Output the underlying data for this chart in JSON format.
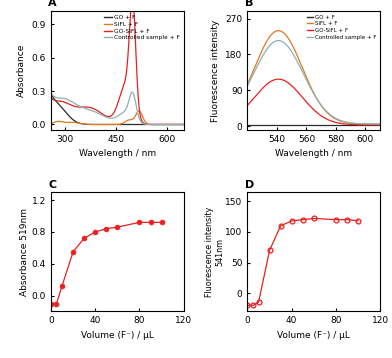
{
  "panel_A": {
    "title": "A",
    "xlabel": "Wavelength / nm",
    "ylabel": "Absorbance",
    "xlim": [
      260,
      650
    ],
    "ylim": [
      -0.05,
      1.02
    ],
    "yticks": [
      0.0,
      0.3,
      0.6,
      0.9
    ],
    "xticks": [
      300,
      450,
      600
    ],
    "legend": [
      "GO + F",
      "SiFL + F",
      "GO-SiFL + F",
      "Controlled sample + F"
    ],
    "colors": [
      "#2a2a2a",
      "#e07820",
      "#e82020",
      "#90b0b0"
    ]
  },
  "panel_B": {
    "title": "B",
    "xlabel": "Wavelength / nm",
    "ylabel": "Fluorescence intensity",
    "xlim": [
      520,
      610
    ],
    "ylim": [
      -10,
      290
    ],
    "yticks": [
      0,
      90,
      180,
      270
    ],
    "xticks": [
      540,
      560,
      580,
      600
    ],
    "legend": [
      "GO + F",
      "SiFL + F",
      "GO-SiFL + F",
      "Controlled sample + F"
    ],
    "colors": [
      "#2a2a2a",
      "#e07820",
      "#e82020",
      "#90b0b0"
    ]
  },
  "panel_C": {
    "title": "C",
    "xlabel": "Volume (F⁻) / μL",
    "ylabel": "Absorbance 519nm",
    "xlim": [
      0,
      120
    ],
    "ylim": [
      -0.2,
      1.3
    ],
    "yticks": [
      0.0,
      0.4,
      0.8,
      1.2
    ],
    "xticks": [
      0,
      40,
      80,
      120
    ],
    "color": "#e82020",
    "x_data": [
      0,
      5,
      10,
      20,
      30,
      40,
      50,
      60,
      80,
      90,
      100
    ],
    "y_data": [
      -0.1,
      -0.1,
      0.12,
      0.55,
      0.72,
      0.8,
      0.84,
      0.86,
      0.92,
      0.92,
      0.92
    ]
  },
  "panel_D": {
    "title": "D",
    "xlabel": "Volume (F⁻) / μL",
    "ylabel": "Fluorescence intensity\n541nm",
    "xlim": [
      0,
      120
    ],
    "ylim": [
      -30,
      165
    ],
    "yticks": [
      0,
      50,
      100,
      150
    ],
    "xticks": [
      0,
      40,
      80,
      120
    ],
    "color": "#e82020",
    "x_data": [
      0,
      5,
      10,
      20,
      30,
      40,
      50,
      60,
      80,
      90,
      100
    ],
    "y_data": [
      -20,
      -20,
      -15,
      70,
      110,
      118,
      120,
      122,
      120,
      120,
      118
    ]
  }
}
